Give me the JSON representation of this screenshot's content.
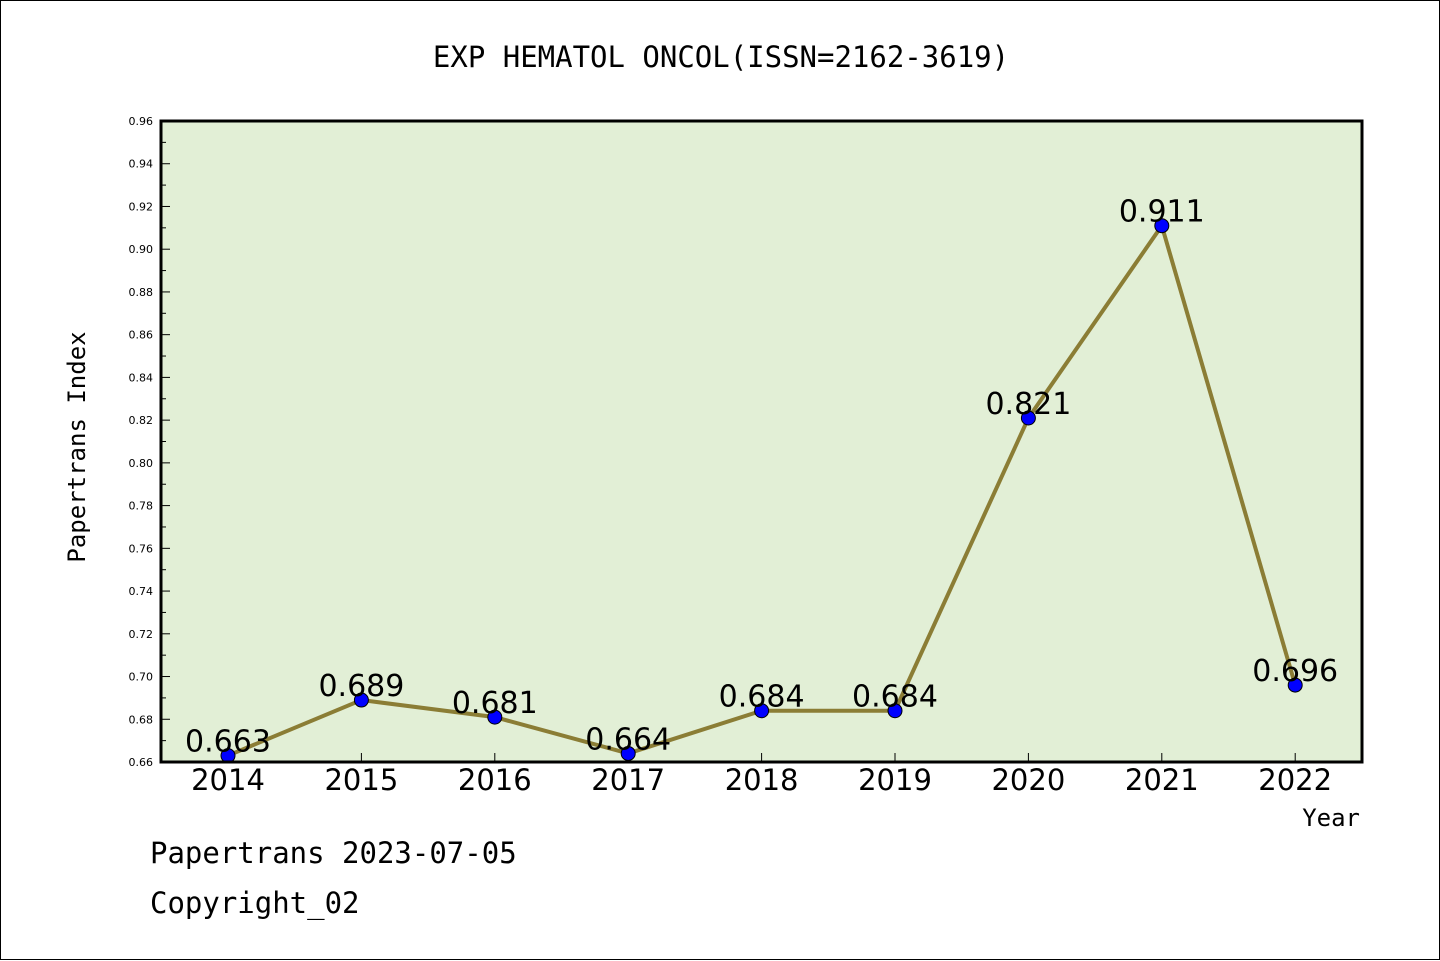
{
  "chart_data": {
    "type": "line",
    "title": "EXP HEMATOL ONCOL(ISSN=2162-3619)",
    "xlabel": "Year",
    "ylabel": "Papertrans Index",
    "categories": [
      "2014",
      "2015",
      "2016",
      "2017",
      "2018",
      "2019",
      "2020",
      "2021",
      "2022"
    ],
    "values": [
      0.663,
      0.689,
      0.681,
      0.664,
      0.684,
      0.684,
      0.821,
      0.911,
      0.696
    ],
    "data_labels": [
      "0.663",
      "0.689",
      "0.681",
      "0.664",
      "0.684",
      "0.684",
      "0.821",
      "0.911",
      "0.696"
    ],
    "ylim": [
      0.66,
      0.96
    ],
    "yticks": [
      "0.66",
      "0.68",
      "0.70",
      "0.72",
      "0.74",
      "0.76",
      "0.78",
      "0.80",
      "0.82",
      "0.84",
      "0.86",
      "0.88",
      "0.90",
      "0.92",
      "0.94",
      "0.96"
    ],
    "grid": false,
    "colors": {
      "plot_background": "#e2efd6",
      "line": "#8b7d35",
      "marker": "#0000ff"
    }
  },
  "footer": {
    "line1": "Papertrans 2023-07-05",
    "line2": "Copyright_02"
  }
}
